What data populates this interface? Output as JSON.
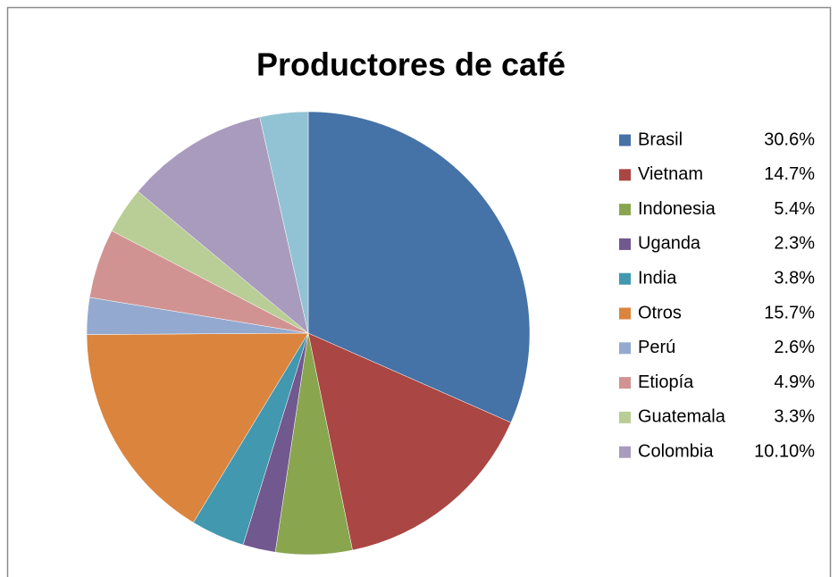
{
  "chart_data": {
    "type": "pie",
    "title": "Productores de café",
    "categories": [
      "Brasil",
      "Vietnam",
      "Indonesia",
      "Uganda",
      "India",
      "Otros",
      "Perú",
      "Etiopía",
      "Guatemala",
      "Colombia",
      null
    ],
    "values": [
      30.6,
      14.7,
      5.4,
      2.3,
      3.8,
      15.7,
      2.6,
      4.9,
      3.3,
      10.1,
      3.4
    ],
    "value_labels": [
      "30.6%",
      "14.7%",
      "5.4%",
      "2.3%",
      "3.8%",
      "15.7%",
      "2.6%",
      "4.9%",
      "3.3%",
      "10.10%",
      null
    ],
    "colors": [
      "#4572A7",
      "#AA4643",
      "#89A54E",
      "#71588F",
      "#4198AF",
      "#DB843D",
      "#93A9CF",
      "#D19392",
      "#B9CD96",
      "#A99BBD",
      "#92C3D4"
    ],
    "legend": "right"
  }
}
